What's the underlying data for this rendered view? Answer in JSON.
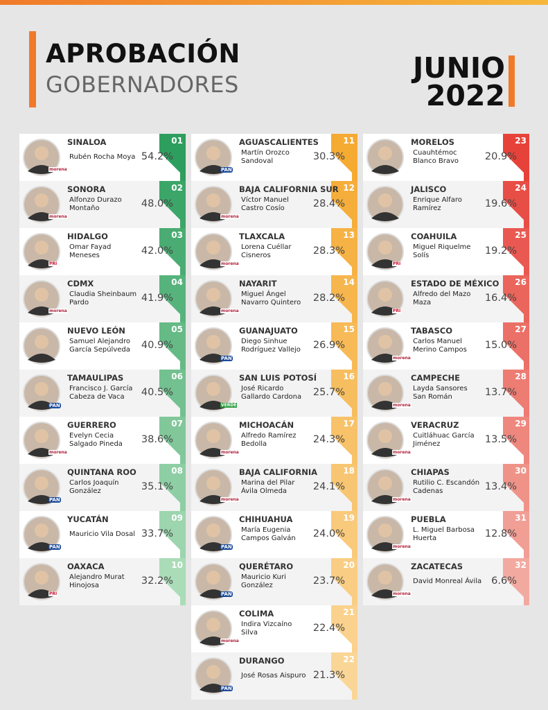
{
  "header": {
    "title": "APROBACIÓN",
    "subtitle": "GOBERNADORES",
    "date": [
      "JUNIO",
      "2022"
    ]
  },
  "governors": [
    {
      "rank": "01",
      "state": "SINALOA",
      "name": [
        "Rubén Rocha Moya"
      ],
      "approval": "54.2%",
      "party": "morena"
    },
    {
      "rank": "02",
      "state": "SONORA",
      "name": [
        "Alfonzo Durazo",
        "Montaño"
      ],
      "approval": "48.0%",
      "party": "morena"
    },
    {
      "rank": "03",
      "state": "HIDALGO",
      "name": [
        "Omar Fayad",
        "Meneses"
      ],
      "approval": "42.0%",
      "party": "PRI"
    },
    {
      "rank": "04",
      "state": "CDMX",
      "name": [
        "Claudia Sheinbaum",
        "Pardo"
      ],
      "approval": "41.9%",
      "party": "morena"
    },
    {
      "rank": "05",
      "state": "NUEVO LEÓN",
      "name": [
        "Samuel Alejandro",
        "García Sepúlveda"
      ],
      "approval": "40.9%"
    },
    {
      "rank": "06",
      "state": "TAMAULIPAS",
      "name": [
        "Francisco J. García",
        "Cabeza de Vaca"
      ],
      "approval": "40.5%",
      "party": "PAN"
    },
    {
      "rank": "07",
      "state": "GUERRERO",
      "name": [
        "Evelyn Cecia",
        "Salgado Pineda"
      ],
      "approval": "38.6%",
      "party": "morena"
    },
    {
      "rank": "08",
      "state": "QUINTANA ROO",
      "name": [
        "Carlos Joaquín",
        "González"
      ],
      "approval": "35.1%",
      "party": "PAN"
    },
    {
      "rank": "09",
      "state": "YUCATÁN",
      "name": [
        "Mauricio Vila Dosal"
      ],
      "approval": "33.7%",
      "party": "PAN"
    },
    {
      "rank": "10",
      "state": "OAXACA",
      "name": [
        "Alejandro Murat",
        "Hinojosa"
      ],
      "approval": "32.2%",
      "party": "PRI"
    },
    {
      "rank": "11",
      "state": "AGUASCALIENTES",
      "name": [
        "Martín Orozco",
        "Sandoval"
      ],
      "approval": "30.3%",
      "party": "PAN"
    },
    {
      "rank": "12",
      "state": "BAJA CALIFORNIA SUR",
      "name": [
        "Víctor Manuel",
        "Castro Cosío"
      ],
      "approval": "28.4%",
      "party": "morena"
    },
    {
      "rank": "13",
      "state": "TLAXCALA",
      "name": [
        "Lorena Cuéllar",
        "Cisneros"
      ],
      "approval": "28.3%",
      "party": "morena"
    },
    {
      "rank": "14",
      "state": "NAYARIT",
      "name": [
        "Miguel Ángel",
        "Navarro Quintero"
      ],
      "approval": "28.2%",
      "party": "morena"
    },
    {
      "rank": "15",
      "state": "GUANAJUATO",
      "name": [
        "Diego Sinhue",
        "Rodríguez Vallejo"
      ],
      "approval": "26.9%",
      "party": "PAN"
    },
    {
      "rank": "16",
      "state": "SAN LUIS POTOSÍ",
      "name": [
        "José Ricardo",
        "Gallardo Cardona"
      ],
      "approval": "25.7%",
      "party": "VERDE"
    },
    {
      "rank": "17",
      "state": "MICHOACÁN",
      "name": [
        "Alfredo Ramírez",
        "Bedolla"
      ],
      "approval": "24.3%",
      "party": "morena"
    },
    {
      "rank": "18",
      "state": "BAJA CALIFORNIA",
      "name": [
        "Marina del Pilar",
        "Ávila Olmeda"
      ],
      "approval": "24.1%",
      "party": "morena"
    },
    {
      "rank": "19",
      "state": "CHIHUAHUA",
      "name": [
        "María Eugenia",
        "Campos Galván"
      ],
      "approval": "24.0%",
      "party": "PAN"
    },
    {
      "rank": "20",
      "state": "QUERÉTARO",
      "name": [
        "Mauricio Kuri",
        "González"
      ],
      "approval": "23.7%",
      "party": "PAN"
    },
    {
      "rank": "21",
      "state": "COLIMA",
      "name": [
        "Indira Vizcaíno",
        "Silva"
      ],
      "approval": "22.4%",
      "party": "morena"
    },
    {
      "rank": "22",
      "state": "DURANGO",
      "name": [
        "José Rosas Aispuro"
      ],
      "approval": "21.3%",
      "party": "PAN"
    },
    {
      "rank": "23",
      "state": "MORELOS",
      "name": [
        "Cuauhtémoc",
        "Blanco Bravo"
      ],
      "approval": "20.9%"
    },
    {
      "rank": "24",
      "state": "JALISCO",
      "name": [
        "Enrique Alfaro",
        "Ramírez"
      ],
      "approval": "19.6%"
    },
    {
      "rank": "25",
      "state": "COAHUILA",
      "name": [
        "Miguel Riquelme",
        "Solís"
      ],
      "approval": "19.2%",
      "party": "PRI"
    },
    {
      "rank": "26",
      "state": "ESTADO DE MÉXICO",
      "name": [
        "Alfredo del Mazo",
        "Maza"
      ],
      "approval": "16.4%",
      "party": "PRI"
    },
    {
      "rank": "27",
      "state": "TABASCO",
      "name": [
        "Carlos Manuel",
        "Merino Campos"
      ],
      "approval": "15.0%",
      "party": "morena"
    },
    {
      "rank": "28",
      "state": "CAMPECHE",
      "name": [
        "Layda Sansores",
        "San Román"
      ],
      "approval": "13.7%",
      "party": "morena"
    },
    {
      "rank": "29",
      "state": "VERACRUZ",
      "name": [
        "Cuitláhuac García",
        "Jiménez"
      ],
      "approval": "13.5%",
      "party": "morena"
    },
    {
      "rank": "30",
      "state": "CHIAPAS",
      "name": [
        "Rutilio C. Escandón",
        "Cadenas"
      ],
      "approval": "13.4%",
      "party": "morena"
    },
    {
      "rank": "31",
      "state": "PUEBLA",
      "name": [
        "L. Miguel Barbosa",
        "Huerta"
      ],
      "approval": "12.8%",
      "party": "morena"
    },
    {
      "rank": "32",
      "state": "ZACATECAS",
      "name": [
        "David Monreal Ávila"
      ],
      "approval": "6.6%",
      "party": "morena"
    }
  ]
}
